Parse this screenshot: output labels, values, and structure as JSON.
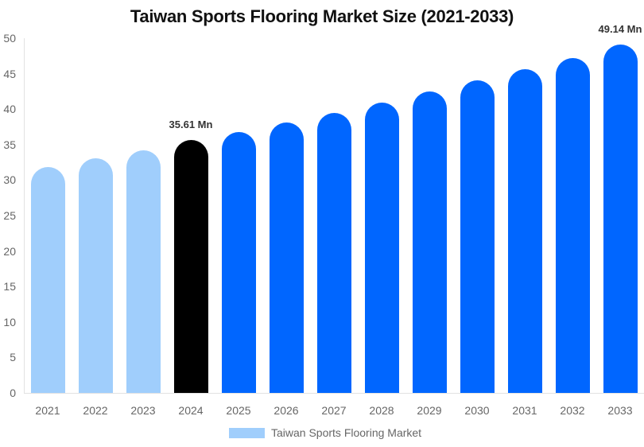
{
  "chart_data": {
    "type": "bar",
    "title": "Taiwan Sports Flooring Market Size (2021-2033)",
    "xlabel": "",
    "ylabel": "",
    "ylim": [
      0,
      50
    ],
    "yticks": [
      0,
      5,
      10,
      15,
      20,
      25,
      30,
      35,
      40,
      45,
      50
    ],
    "grid": false,
    "legend_position": "bottom",
    "categories": [
      "2021",
      "2022",
      "2023",
      "2024",
      "2025",
      "2026",
      "2027",
      "2028",
      "2029",
      "2030",
      "2031",
      "2032",
      "2033"
    ],
    "series": [
      {
        "name": "Taiwan Sports Flooring Market",
        "values": [
          31.8,
          33.1,
          34.2,
          35.61,
          36.8,
          38.1,
          39.5,
          40.9,
          42.5,
          44.1,
          45.6,
          47.2,
          49.14
        ]
      }
    ],
    "bar_colors": [
      "#a0cefc",
      "#a0cefc",
      "#a0cefc",
      "#000000",
      "#0066ff",
      "#0066ff",
      "#0066ff",
      "#0066ff",
      "#0066ff",
      "#0066ff",
      "#0066ff",
      "#0066ff",
      "#0066ff"
    ],
    "annotations": [
      {
        "category": "2024",
        "text": "35.61 Mn"
      },
      {
        "category": "2033",
        "text": "49.14 Mn"
      }
    ]
  },
  "title": "Taiwan Sports Flooring Market Size (2021-2033)",
  "legend": {
    "label": "Taiwan Sports Flooring Market",
    "color": "#a0cefc"
  },
  "labels": {
    "l2024": "35.61 Mn",
    "l2033": "49.14 Mn"
  }
}
